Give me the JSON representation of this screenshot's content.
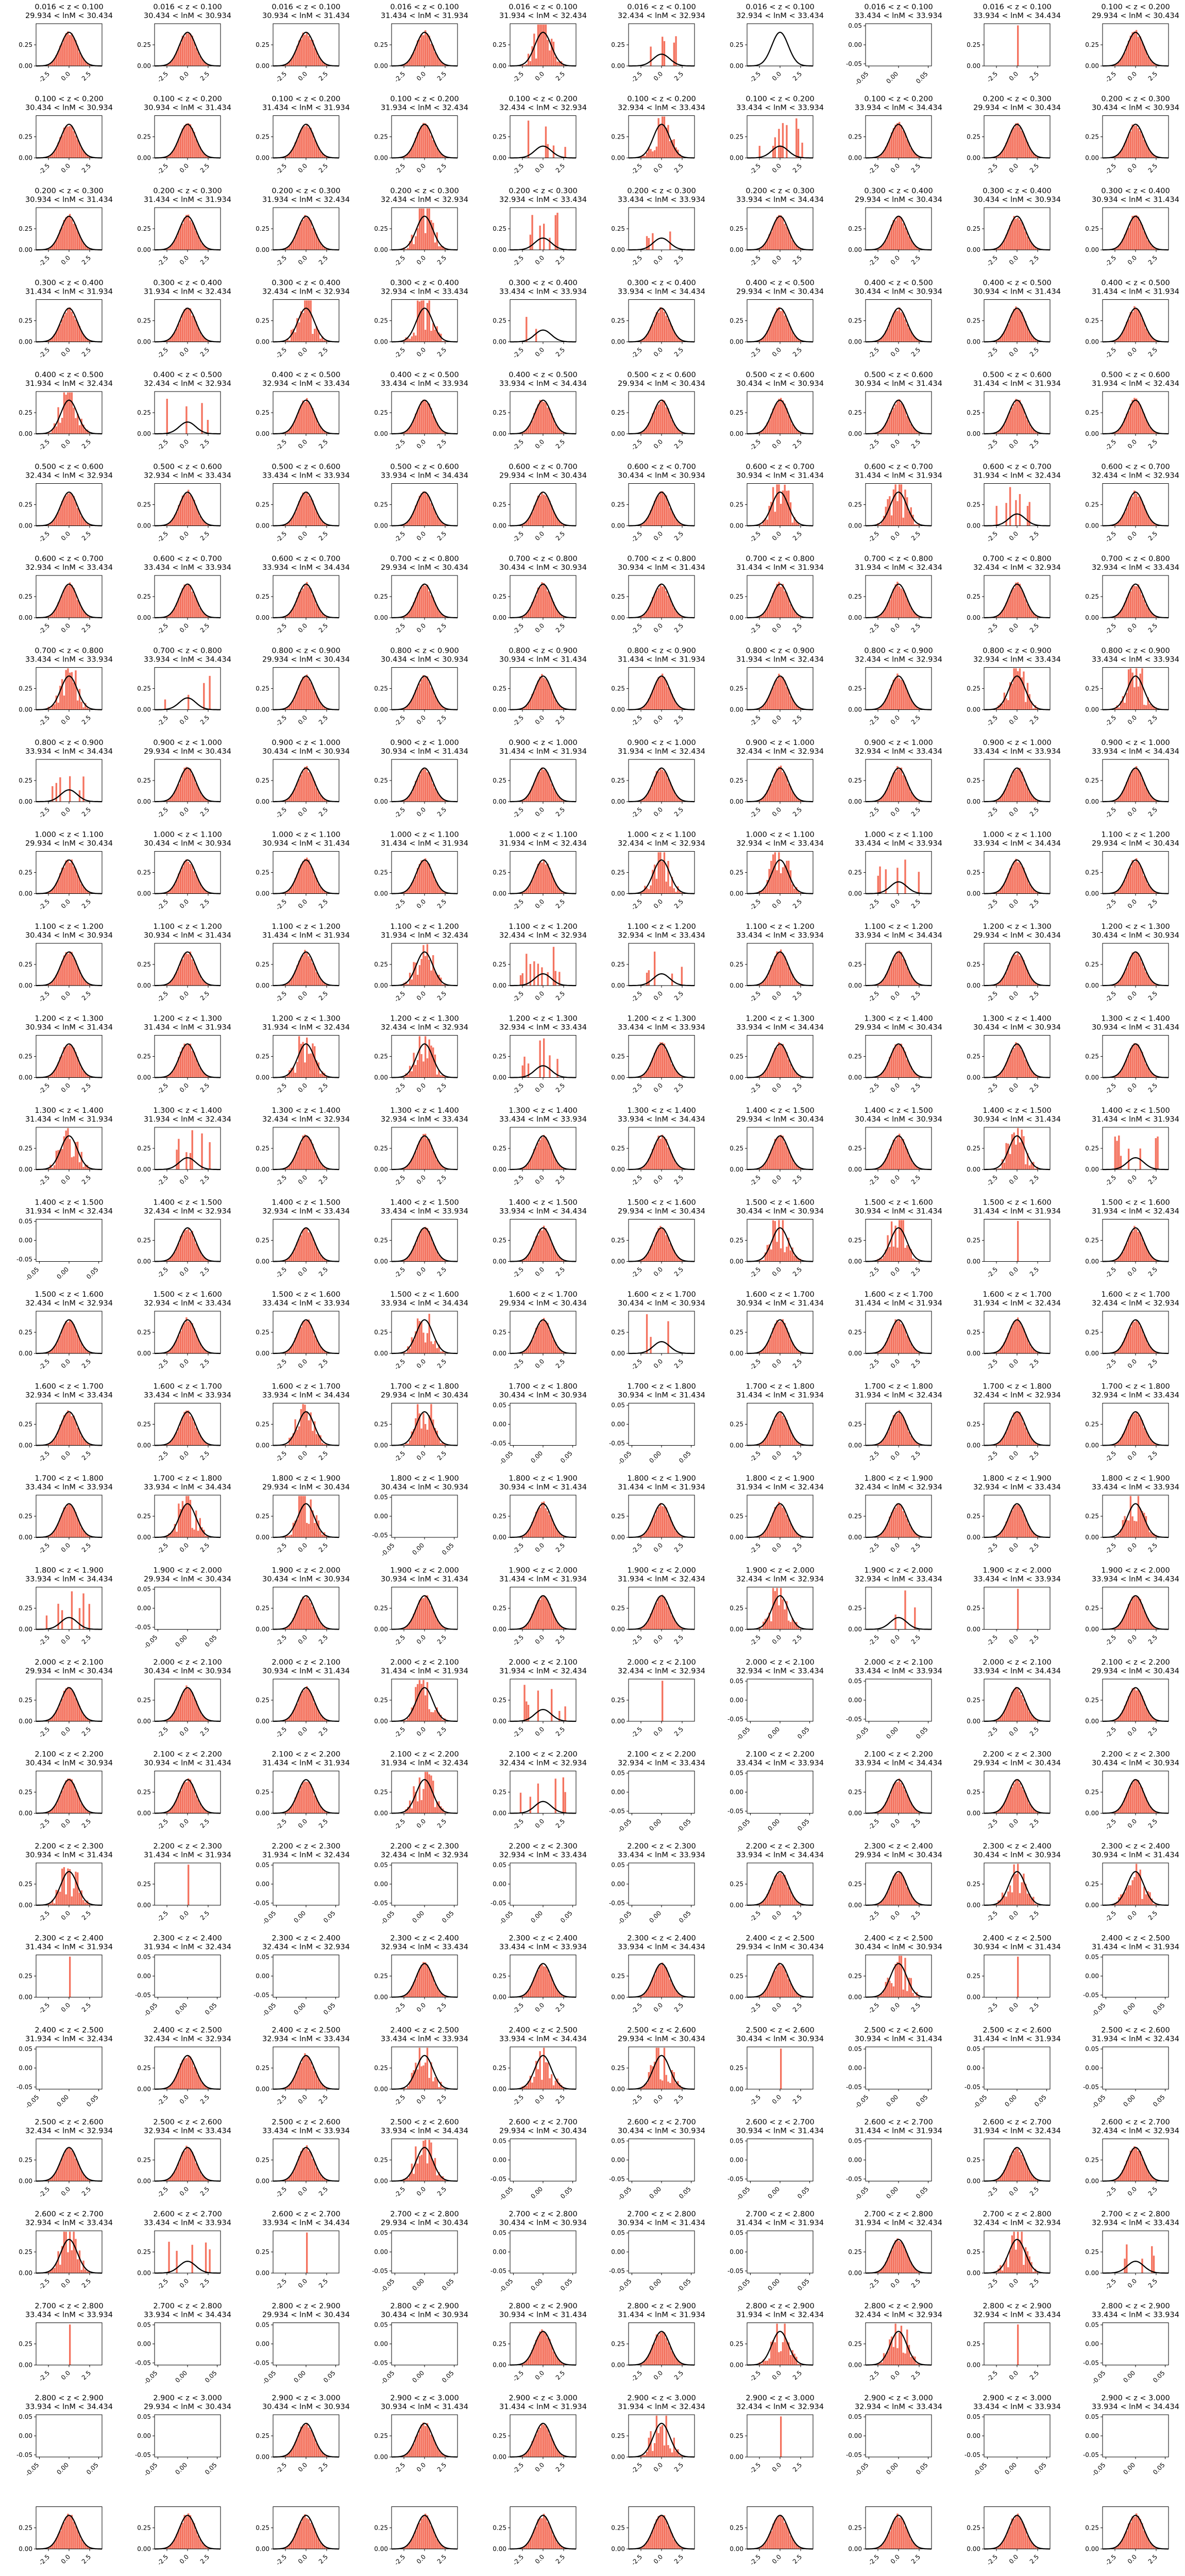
{
  "chart_data": {
    "type": "histogram-grid",
    "description": "Normalized residual histograms per redshift bin and lnM bin, each with a unit Gaussian overlay",
    "colors": {
      "histogram": "#f4735f",
      "gaussian": "#000000"
    },
    "columns": 10,
    "rows": 28,
    "z_bins": [
      "0.016 < z < 0.100",
      "0.100 < z < 0.200",
      "0.200 < z < 0.300",
      "0.300 < z < 0.400",
      "0.400 < z < 0.500",
      "0.500 < z < 0.600",
      "0.600 < z < 0.700",
      "0.700 < z < 0.800",
      "0.800 < z < 0.900",
      "0.900 < z < 1.000",
      "1.000 < z < 1.100",
      "1.100 < z < 1.200",
      "1.200 < z < 1.300",
      "1.300 < z < 1.400",
      "1.400 < z < 1.500",
      "1.500 < z < 1.600",
      "1.600 < z < 1.700",
      "1.700 < z < 1.800",
      "1.800 < z < 1.900",
      "1.900 < z < 2.000",
      "2.000 < z < 2.100",
      "2.100 < z < 2.200",
      "2.200 < z < 2.300",
      "2.300 < z < 2.400",
      "2.400 < z < 2.500",
      "2.500 < z < 2.600",
      "2.600 < z < 2.700",
      "2.700 < z < 2.800",
      "2.800 < z < 2.900",
      "2.900 < z < 3.000"
    ],
    "lnM_bins": [
      "29.934 < lnM < 30.434",
      "30.434 < lnM < 30.934",
      "30.934 < lnM < 31.434",
      "31.434 < lnM < 31.934",
      "31.934 < lnM < 32.434",
      "32.434 < lnM < 32.934",
      "32.934 < lnM < 33.434",
      "33.434 < lnM < 33.934",
      "33.934 < lnM < 34.434"
    ],
    "x_ticks_gauss": [
      "-2.5",
      "0.0",
      "2.5"
    ],
    "y_ticks_gauss": [
      "0.00",
      "0.25"
    ],
    "x_ticks_empty": [
      "-0.05",
      "0.00",
      "0.05"
    ],
    "y_ticks_empty": [
      "-0.05",
      "0.00",
      "0.05"
    ],
    "panel_kinds": [
      "gauss",
      "gauss",
      "gauss",
      "gauss",
      "noisy",
      "sparse",
      "flat",
      "empty",
      "spike",
      "gauss",
      "gauss",
      "gauss",
      "gauss",
      "gauss",
      "sparse",
      "noisy",
      "sparse",
      "gauss",
      "gauss",
      "gauss",
      "gauss",
      "gauss",
      "gauss",
      "noisy",
      "sparse",
      "sparse",
      "gauss",
      "gauss",
      "gauss",
      "gauss",
      "gauss",
      "gauss",
      "noisy",
      "noisy",
      "sparse",
      "gauss",
      "gauss",
      "gauss",
      "gauss",
      "gauss",
      "noisy",
      "sparse",
      "gauss",
      "gauss",
      "gauss",
      "gauss",
      "gauss",
      "gauss",
      "gauss",
      "gauss",
      "gauss",
      "gauss",
      "gauss",
      "gauss",
      "gauss",
      "gauss",
      "noisy",
      "noisy",
      "sparse",
      "gauss",
      "gauss",
      "gauss",
      "gauss",
      "gauss",
      "gauss",
      "gauss",
      "gauss",
      "gauss",
      "gauss",
      "gauss",
      "noisy",
      "sparse",
      "gauss",
      "gauss",
      "gauss",
      "gauss",
      "gauss",
      "gauss",
      "noisy",
      "noisy",
      "sparse",
      "gauss",
      "gauss",
      "gauss",
      "gauss",
      "gauss",
      "gauss",
      "gauss",
      "gauss",
      "gauss",
      "gauss",
      "gauss",
      "gauss",
      "gauss",
      "gauss",
      "noisy",
      "noisy",
      "sparse",
      "gauss",
      "gauss",
      "gauss",
      "gauss",
      "gauss",
      "noisy",
      "sparse",
      "sparse",
      "gauss",
      "gauss",
      "gauss",
      "gauss",
      "gauss",
      "gauss",
      "noisy",
      "noisy",
      "sparse",
      "gauss",
      "gauss",
      "gauss",
      "gauss",
      "gauss",
      "noisy",
      "sparse",
      "gauss",
      "gauss",
      "gauss",
      "gauss",
      "gauss",
      "gauss",
      "noisy",
      "sparse",
      "empty",
      "gauss",
      "gauss",
      "gauss",
      "gauss",
      "gauss",
      "noisy",
      "noisy",
      "spike",
      "gauss",
      "gauss",
      "gauss",
      "gauss",
      "noisy",
      "gauss",
      "sparse",
      "gauss",
      "gauss",
      "gauss",
      "gauss",
      "gauss",
      "gauss",
      "noisy",
      "noisy",
      "empty",
      "empty",
      "gauss",
      "gauss",
      "gauss",
      "gauss",
      "gauss",
      "noisy",
      "noisy",
      "empty",
      "gauss",
      "gauss",
      "gauss",
      "gauss",
      "gauss",
      "noisy",
      "sparse",
      "empty",
      "gauss",
      "gauss",
      "gauss",
      "gauss",
      "noisy",
      "sparse",
      "spike",
      "gauss",
      "gauss",
      "gauss",
      "gauss",
      "noisy",
      "sparse",
      "spike",
      "empty",
      "empty",
      "gauss",
      "gauss",
      "gauss",
      "gauss",
      "gauss",
      "noisy",
      "sparse",
      "empty",
      "empty",
      "gauss",
      "gauss",
      "gauss",
      "noisy",
      "spike",
      "empty",
      "empty",
      "empty",
      "empty",
      "gauss",
      "gauss",
      "noisy",
      "noisy",
      "spike",
      "empty",
      "empty",
      "gauss",
      "gauss",
      "gauss",
      "gauss",
      "noisy",
      "spike",
      "empty",
      "empty",
      "gauss",
      "gauss",
      "noisy",
      "noisy",
      "noisy",
      "spike",
      "empty",
      "empty",
      "empty",
      "gauss",
      "gauss",
      "gauss",
      "noisy",
      "empty",
      "empty",
      "empty",
      "empty",
      "gauss",
      "gauss",
      "noisy",
      "sparse",
      "spike",
      "empty",
      "empty",
      "empty",
      "empty",
      "gauss",
      "noisy",
      "sparse",
      "spike",
      "empty",
      "empty",
      "empty",
      "gauss",
      "gauss",
      "noisy",
      "noisy",
      "spike",
      "empty",
      "empty",
      "empty",
      "gauss",
      "gauss",
      "gauss",
      "noisy",
      "spike",
      "empty",
      "empty",
      "empty"
    ],
    "x_range_gauss": [
      -4,
      4
    ],
    "y_range_gauss": [
      0,
      0.5
    ]
  }
}
